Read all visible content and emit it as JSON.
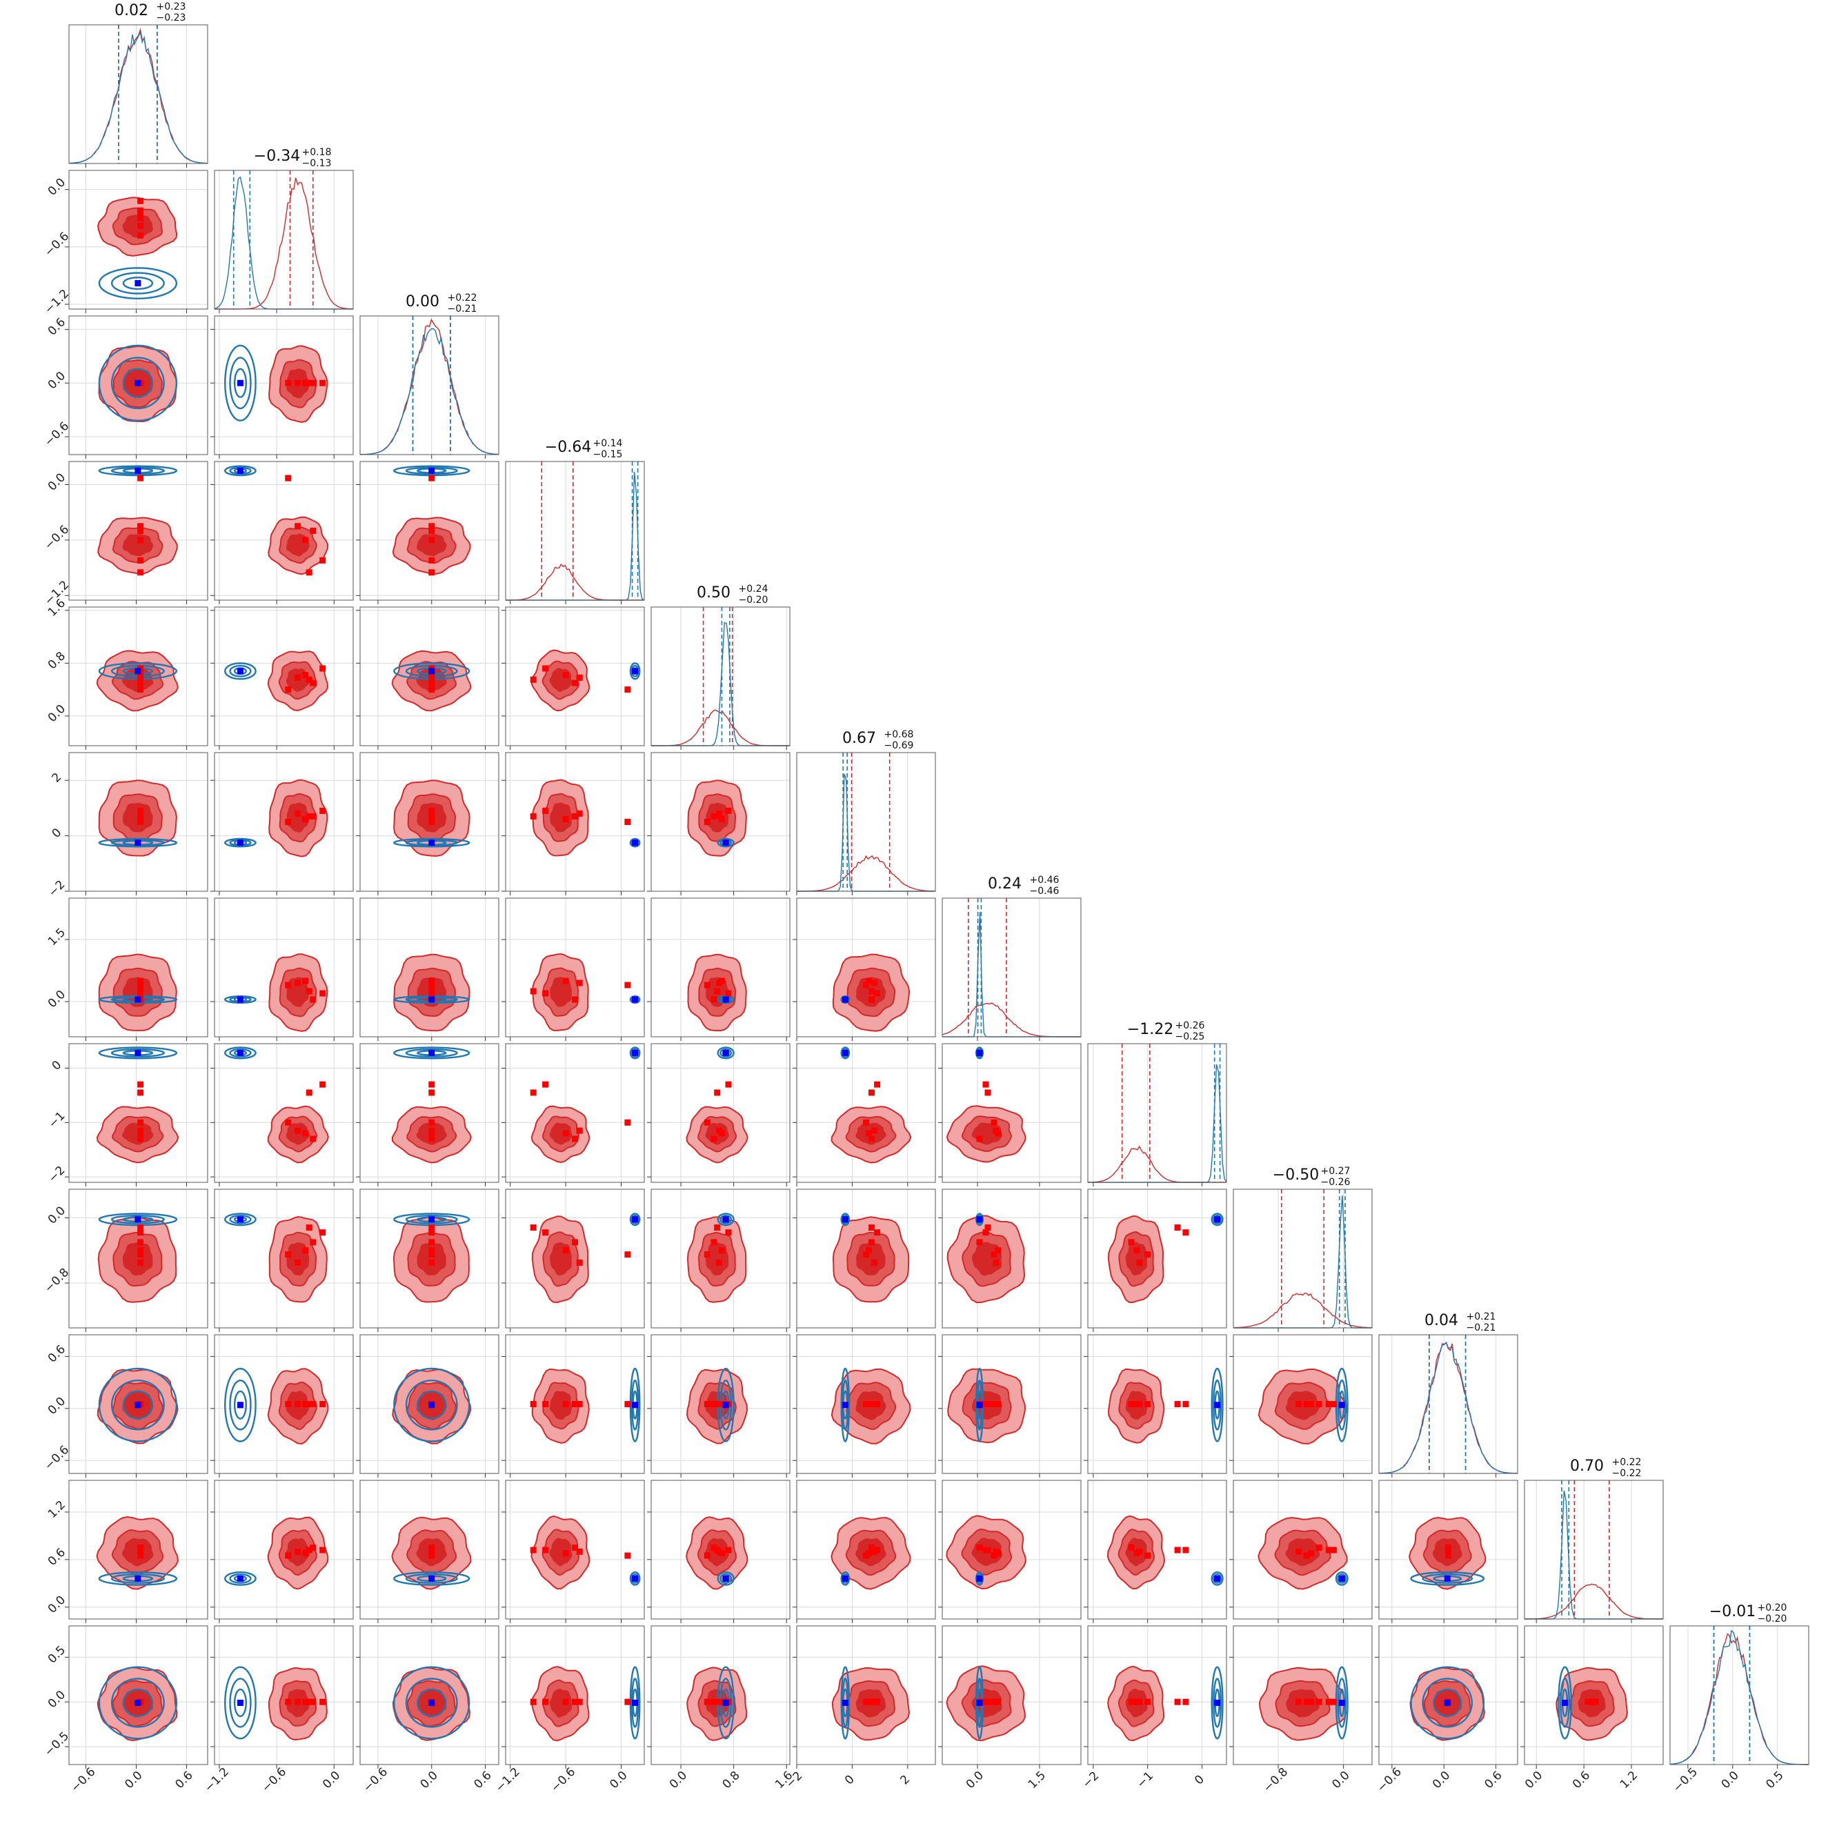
{
  "chart_data": {
    "type": "corner",
    "n_params": 12,
    "titles": [
      {
        "median": "0.02",
        "plus": "+0.23",
        "minus": "−0.23"
      },
      {
        "median": "−0.34",
        "plus": "+0.18",
        "minus": "−0.13"
      },
      {
        "median": "0.00",
        "plus": "+0.22",
        "minus": "−0.21"
      },
      {
        "median": "−0.64",
        "plus": "+0.14",
        "minus": "−0.15"
      },
      {
        "median": "0.50",
        "plus": "+0.24",
        "minus": "−0.20"
      },
      {
        "median": "0.67",
        "plus": "+0.68",
        "minus": "−0.69"
      },
      {
        "median": "0.24",
        "plus": "+0.46",
        "minus": "−0.46"
      },
      {
        "median": "−1.22",
        "plus": "+0.26",
        "minus": "−0.25"
      },
      {
        "median": "−0.50",
        "plus": "+0.27",
        "minus": "−0.26"
      },
      {
        "median": "0.04",
        "plus": "+0.21",
        "minus": "−0.21"
      },
      {
        "median": "0.70",
        "plus": "+0.22",
        "minus": "−0.22"
      },
      {
        "median": "−0.01",
        "plus": "+0.20",
        "minus": "−0.20"
      }
    ],
    "axis_ranges": [
      [
        -0.8,
        0.85
      ],
      [
        -1.25,
        0.2
      ],
      [
        -0.8,
        0.75
      ],
      [
        -1.25,
        0.25
      ],
      [
        -0.45,
        1.65
      ],
      [
        -2.0,
        3.0
      ],
      [
        -0.85,
        2.5
      ],
      [
        -2.1,
        0.45
      ],
      [
        -1.35,
        0.35
      ],
      [
        -0.75,
        0.85
      ],
      [
        -0.15,
        1.6
      ],
      [
        -0.7,
        0.85
      ]
    ],
    "ticks": [
      {
        "values": [
          -0.6,
          0.0,
          0.6
        ],
        "labels": [
          "−0.6",
          "0.0",
          "0.6"
        ]
      },
      {
        "values": [
          -1.2,
          -0.6,
          0.0
        ],
        "labels": [
          "−1.2",
          "−0.6",
          "0.0"
        ]
      },
      {
        "values": [
          -0.6,
          0.0,
          0.6
        ],
        "labels": [
          "−0.6",
          "0.0",
          "0.6"
        ]
      },
      {
        "values": [
          -1.2,
          -0.6,
          0.0
        ],
        "labels": [
          "−1.2",
          "−0.6",
          "0.0"
        ]
      },
      {
        "values": [
          0.0,
          0.8,
          1.6
        ],
        "labels": [
          "0.0",
          "0.8",
          "1.6"
        ]
      },
      {
        "values": [
          -2,
          0,
          2
        ],
        "labels": [
          "−2",
          "0",
          "2"
        ]
      },
      {
        "values": [
          0.0,
          1.5
        ],
        "labels": [
          "0.0",
          "1.5"
        ]
      },
      {
        "values": [
          -2,
          -1,
          0
        ],
        "labels": [
          "−2",
          "−1",
          "0"
        ]
      },
      {
        "values": [
          -0.8,
          0.0
        ],
        "labels": [
          "−0.8",
          "0.0"
        ]
      },
      {
        "values": [
          -0.6,
          0.0,
          0.6
        ],
        "labels": [
          "−0.6",
          "0.0",
          "0.6"
        ]
      },
      {
        "values": [
          0.0,
          0.6,
          1.2
        ],
        "labels": [
          "0.0",
          "0.6",
          "1.2"
        ]
      },
      {
        "values": [
          -0.5,
          0.0,
          0.5
        ],
        "labels": [
          "−0.5",
          "0.0",
          "0.5"
        ]
      }
    ],
    "series": [
      {
        "color": "#d62728",
        "fill_color": "#d62728",
        "means": [
          0.02,
          -0.38,
          0.0,
          -0.65,
          0.55,
          0.67,
          0.24,
          -1.2,
          -0.5,
          0.04,
          0.7,
          -0.01
        ],
        "sigmas": [
          0.23,
          0.15,
          0.21,
          0.15,
          0.22,
          0.68,
          0.46,
          0.25,
          0.26,
          0.21,
          0.22,
          0.2
        ],
        "quantiles": [
          [
            -0.21,
            0.25
          ],
          [
            -0.46,
            -0.22
          ],
          [
            -0.21,
            0.21
          ],
          [
            -0.86,
            -0.52
          ],
          [
            0.34,
            0.78
          ],
          [
            -0.02,
            1.35
          ],
          [
            -0.22,
            0.7
          ],
          [
            -1.47,
            -0.96
          ],
          [
            -0.76,
            -0.24
          ],
          [
            -0.17,
            0.25
          ],
          [
            0.48,
            0.92
          ],
          [
            -0.21,
            0.19
          ]
        ]
      },
      {
        "color": "#1f77b4",
        "means": [
          0.02,
          -0.98,
          0.0,
          0.15,
          0.68,
          -0.25,
          0.05,
          0.28,
          -0.02,
          0.04,
          0.36,
          -0.01
        ],
        "sigmas": [
          0.23,
          0.08,
          0.21,
          0.025,
          0.06,
          0.07,
          0.04,
          0.05,
          0.035,
          0.21,
          0.04,
          0.2
        ],
        "quantiles": [
          [
            -0.21,
            0.25
          ],
          [
            -1.05,
            -0.88
          ],
          [
            -0.21,
            0.21
          ],
          [
            0.12,
            0.18
          ],
          [
            0.62,
            0.74
          ],
          [
            -0.33,
            -0.18
          ],
          [
            0.01,
            0.09
          ],
          [
            0.23,
            0.33
          ],
          [
            -0.05,
            0.02
          ],
          [
            -0.17,
            0.25
          ],
          [
            0.32,
            0.41
          ],
          [
            -0.21,
            0.19
          ]
        ]
      }
    ],
    "truth_markers": {
      "color": "#0000ff",
      "values": [
        0.02,
        -0.98,
        0.0,
        0.15,
        0.68,
        -0.25,
        0.05,
        0.28,
        -0.02,
        0.04,
        0.36,
        -0.01
      ]
    },
    "points": {
      "color": "#ff0000",
      "sets": [
        [
          0.05,
          -0.26,
          0.0,
          -0.95,
          0.55,
          0.7,
          0.25,
          -0.45,
          -0.12,
          0.05,
          0.72,
          0.0
        ],
        [
          0.05,
          -0.12,
          0.0,
          -0.82,
          0.72,
          0.9,
          0.2,
          -0.3,
          -0.18,
          0.05,
          0.72,
          0.0
        ],
        [
          0.05,
          -0.48,
          0.0,
          0.07,
          0.4,
          0.5,
          0.4,
          -1.0,
          -0.45,
          0.05,
          0.65,
          0.0
        ],
        [
          0.05,
          -0.38,
          0.0,
          -0.45,
          0.58,
          0.8,
          0.45,
          -1.15,
          -0.55,
          0.05,
          0.7,
          0.0
        ],
        [
          0.05,
          -0.3,
          0.0,
          -0.6,
          0.62,
          0.6,
          0.5,
          -1.2,
          -0.4,
          0.05,
          0.68,
          0.0
        ],
        [
          0.05,
          -0.22,
          0.0,
          -0.5,
          0.5,
          0.7,
          0.05,
          -1.3,
          -0.3,
          0.05,
          0.75,
          0.0
        ]
      ]
    },
    "grid": true
  }
}
